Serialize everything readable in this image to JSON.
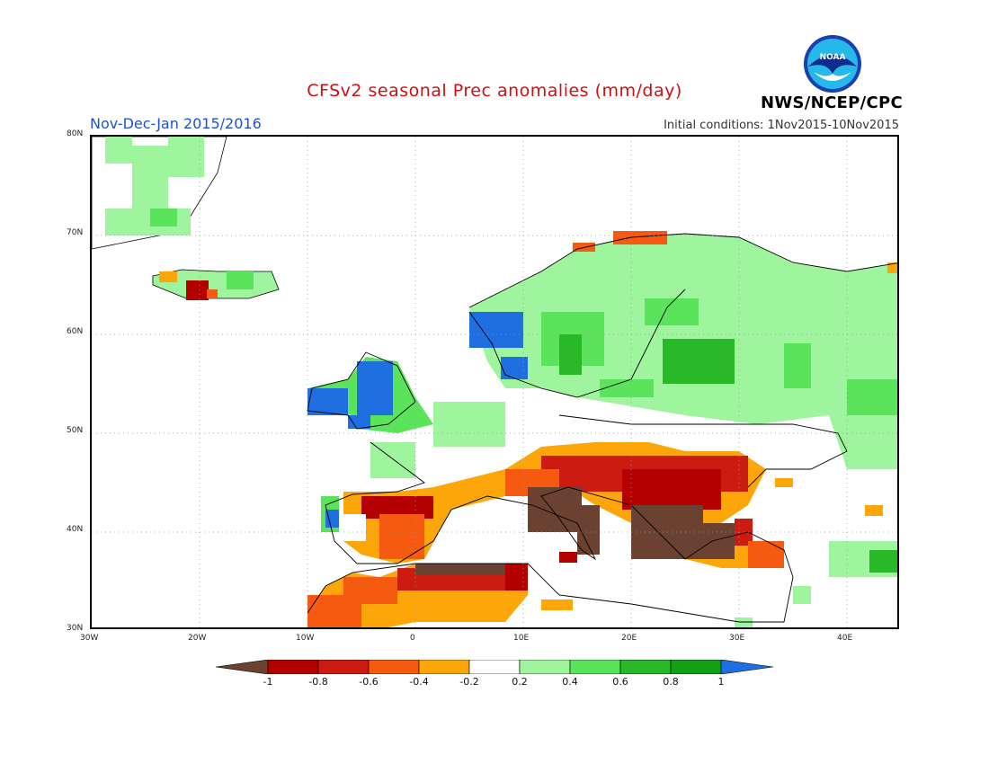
{
  "header": {
    "title": "CFSv2 seasonal Prec anomalies (mm/day)",
    "period": "Nov-Dec-Jan 2015/2016",
    "initial_conditions": "Initial conditions: 1Nov2015-10Nov2015",
    "agency": "NWS/NCEP/CPC",
    "logo_text": "NOAA"
  },
  "axes": {
    "lat_labels": [
      "80N",
      "70N",
      "60N",
      "50N",
      "40N",
      "30N"
    ],
    "lon_labels": [
      "30W",
      "20W",
      "10W",
      "0",
      "10E",
      "20E",
      "30E",
      "40E"
    ]
  },
  "colorbar": {
    "ticks": [
      "-1",
      "-0.8",
      "-0.6",
      "-0.4",
      "-0.2",
      "0.2",
      "0.4",
      "0.6",
      "0.8",
      "1"
    ],
    "colors": {
      "lt_-1": "#6b4232",
      "-1_-0.8": "#b50000",
      "-0.8_-0.6": "#cc1b10",
      "-0.6_-0.4": "#f55a10",
      "-0.4_-0.2": "#fca60a",
      "-0.2_0.2": "#ffffff",
      "0.2_0.4": "#9ef59e",
      "0.4_0.6": "#5ce35c",
      "0.6_0.8": "#28b828",
      "0.8_1": "#14a014",
      "gt_1": "#1f6fe0"
    }
  },
  "map": {
    "lon_range": [
      -30,
      45
    ],
    "lat_range": [
      30,
      80
    ],
    "grid": "dotted every 10 degrees"
  }
}
